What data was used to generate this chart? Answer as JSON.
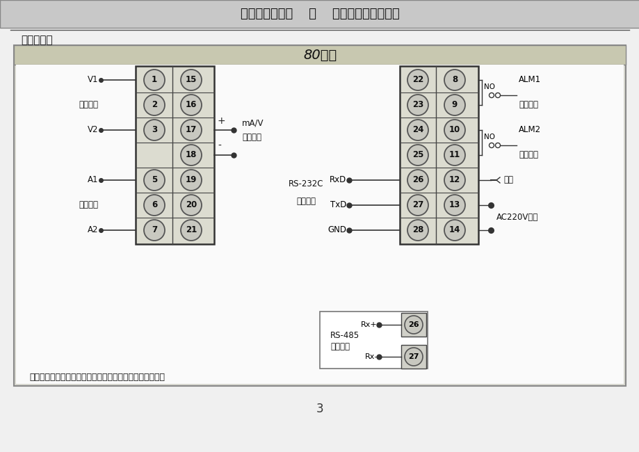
{
  "title_header": "虹润牌智能仪表    之    交流电工显示控制仪",
  "section_title": "三、接线图",
  "diagram_title": "80系列",
  "page_number": "3",
  "page_bg": "#e8e8e8",
  "header_bg": "#c8c8c8",
  "header_text_color": "#111111",
  "diagram_outer_bg": "#d8d8d8",
  "diagram_inner_bg": "#f8f8f8",
  "title_bar_bg": "#c8c8b8",
  "circle_fill": "#c8c8c0",
  "circle_edge": "#444444",
  "block_bg": "#e0e0d8",
  "line_color": "#333333",
  "left_col1": [
    "1",
    "2",
    "3",
    "",
    "5",
    "6",
    "7"
  ],
  "left_col2": [
    "15",
    "16",
    "17",
    "18",
    "19",
    "20",
    "21"
  ],
  "right_col1": [
    "22",
    "23",
    "24",
    "25",
    "26",
    "27",
    "28"
  ],
  "right_col2": [
    "8",
    "9",
    "10",
    "11",
    "12",
    "13",
    "14"
  ],
  "note": "备注：特殊订货与本接线图不同之处，以随机接线图为准。"
}
